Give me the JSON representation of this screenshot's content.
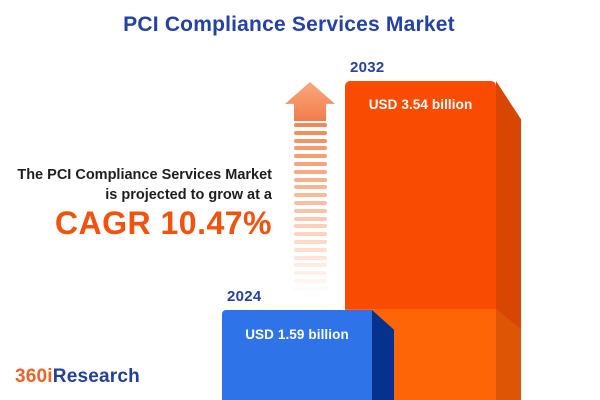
{
  "title": "PCI Compliance Services Market",
  "statement": {
    "line1": "The PCI Compliance Services Market",
    "line2": "is projected to grow at a",
    "cagr": "CAGR 10.47%"
  },
  "chart_data": {
    "type": "bar",
    "title": "PCI Compliance Services Market",
    "unit": "USD billion",
    "categories": [
      "2024",
      "2032"
    ],
    "values": [
      1.59,
      3.54
    ],
    "cagr_percent": 10.47,
    "legend_position": "none",
    "axes_visible": false,
    "bars": [
      {
        "year": "2024",
        "value": 1.59,
        "value_label": "USD 1.59 billion",
        "face_color": "#2E74E8",
        "side_color": "#05328C"
      },
      {
        "year": "2032",
        "value": 3.54,
        "value_label": "USD 3.54 billion",
        "face_color": "#F94B02",
        "side_color": "#D94503",
        "lower_segment_color": "#FD6506",
        "lower_segment_side_color": "#DF5506"
      }
    ]
  },
  "arrow": {
    "stripe_count": 22,
    "stripe_color": "#F5854F",
    "head_gradient_top": "#F9A87D",
    "head_gradient_bottom": "#F47C4B"
  },
  "colors": {
    "title_blue": "#2342A6",
    "accent_orange": "#F4510C",
    "text_dark": "#1E1E1E"
  },
  "logo": {
    "part1": "360i",
    "part2": "Research",
    "part1_color": "#F26322",
    "part2_color": "#21409A"
  }
}
